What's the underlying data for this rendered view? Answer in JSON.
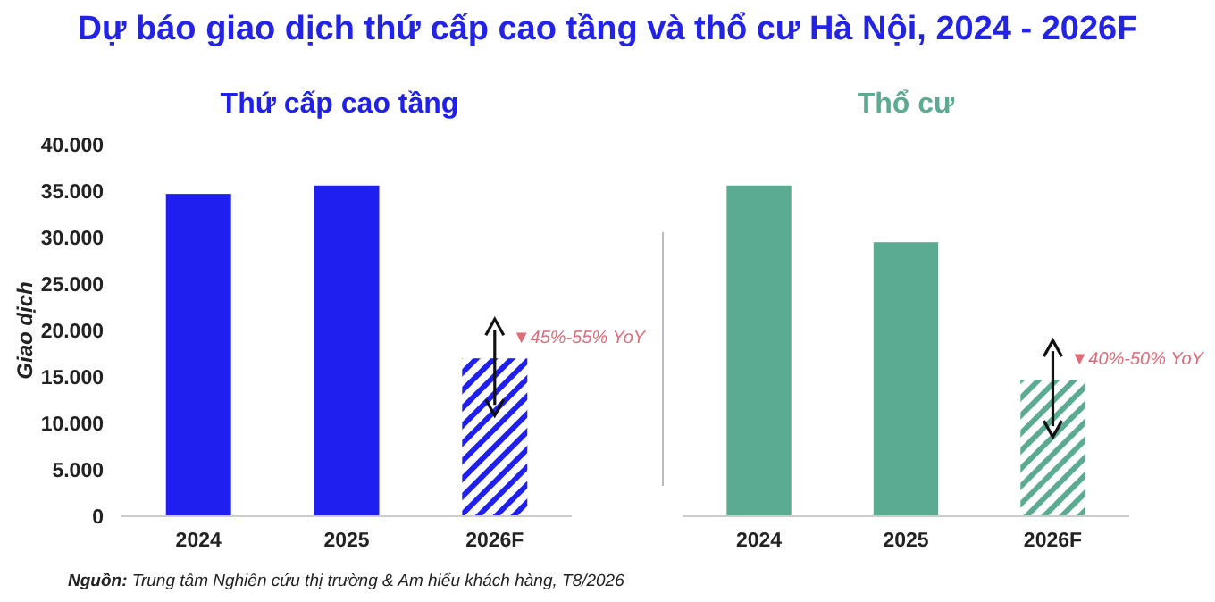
{
  "chart_data": [
    {
      "type": "bar",
      "title": "Dự báo giao dịch thứ cấp cao tầng và thổ cư Hà Nội, 2024 - 2026F",
      "subtitle": "Thứ cấp cao tầng",
      "ylabel": "Giao dịch",
      "categories": [
        "2024",
        "2025",
        "2026F"
      ],
      "values": [
        34700,
        35600,
        17000
      ],
      "colors": [
        "#1f1ff0",
        "#1f1ff0",
        "#1f1ff0"
      ],
      "ylim": [
        0,
        40000
      ],
      "yticks": [
        {
          "value": 0,
          "label": "0"
        },
        {
          "value": 5000,
          "label": "5.000"
        },
        {
          "value": 10000,
          "label": "10.000"
        },
        {
          "value": 15000,
          "label": "15.000"
        },
        {
          "value": 20000,
          "label": "20.000"
        },
        {
          "value": 25000,
          "label": "25.000"
        },
        {
          "value": 30000,
          "label": "30.000"
        },
        {
          "value": 35000,
          "label": "35.000"
        },
        {
          "value": 40000,
          "label": "40.000"
        }
      ],
      "grid": false,
      "annotations": [
        {
          "text": "▼45%-55% YoY",
          "x": "2026F",
          "y": 17000
        },
        "Nguồn: Trung tâm Nghiên cứu thị trường & Am hiểu khách hàng, T8/2026"
      ]
    },
    {
      "type": "bar",
      "title": "Thổ cư",
      "categories": [
        "2024",
        "2025",
        "2026F"
      ],
      "values": [
        35600,
        29500,
        14700
      ],
      "colors": [
        "#5aab92",
        "#5aab92",
        "#5aab92"
      ],
      "ylim": [
        0,
        40000
      ],
      "tick_labels": "x",
      "grid": false,
      "annotations": [
        {
          "text": "▼40%-50% YoY",
          "x": "2026F",
          "y": 14700
        }
      ]
    }
  ]
}
